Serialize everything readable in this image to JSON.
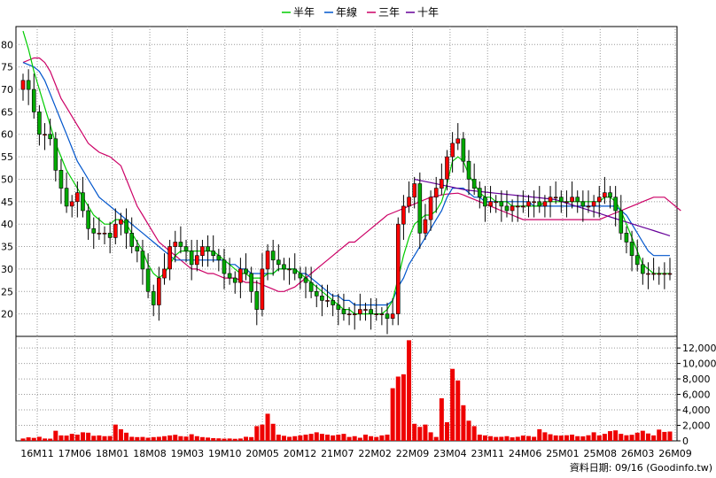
{
  "chart_data": {
    "type": "candlestick-with-volume",
    "legend": [
      {
        "label": "半年",
        "color": "#00cc00"
      },
      {
        "label": "年線",
        "color": "#0055cc"
      },
      {
        "label": "三年",
        "color": "#cc0066"
      },
      {
        "label": "十年",
        "color": "#660099"
      }
    ],
    "price_axis": {
      "ticks": [
        20,
        25,
        30,
        35,
        40,
        45,
        50,
        55,
        60,
        65,
        70,
        75,
        80
      ],
      "ylim": [
        15,
        84
      ]
    },
    "volume_axis": {
      "ticks": [
        "0",
        "2,000",
        "4,000",
        "6,000",
        "8,000",
        "10,000",
        "12,000"
      ],
      "values": [
        0,
        2000,
        4000,
        6000,
        8000,
        10000,
        12000
      ],
      "ylim": [
        0,
        13500
      ]
    },
    "x_ticks": [
      "16M11",
      "17M06",
      "18M01",
      "18M08",
      "19M03",
      "19M10",
      "20M05",
      "20M12",
      "21M07",
      "22M02",
      "22M09",
      "23M04",
      "23M11",
      "24M06",
      "25M01",
      "25M08",
      "26M03",
      "26M09"
    ],
    "ohlc_close": [
      72,
      70,
      65,
      60,
      60,
      59,
      52,
      48,
      44,
      45,
      47,
      43,
      39,
      38,
      38,
      38,
      37,
      40,
      41,
      38,
      35,
      34,
      30,
      25,
      22,
      28,
      30,
      35,
      36,
      35,
      34,
      31,
      33,
      35,
      34,
      33,
      32,
      29,
      28,
      27,
      30,
      29,
      25,
      21,
      30,
      34,
      32,
      31,
      30,
      30,
      29,
      28,
      27,
      25,
      24,
      23,
      23,
      22,
      21,
      20,
      20,
      20,
      21,
      21,
      20,
      20,
      20,
      19,
      20,
      40,
      44,
      46,
      49,
      38,
      41,
      46,
      48,
      50,
      55,
      58,
      59,
      54,
      50,
      48,
      46,
      44,
      45,
      45,
      44,
      43,
      44,
      44,
      44,
      45,
      45,
      44,
      45,
      46,
      46,
      45,
      45,
      46,
      45,
      44,
      44,
      45,
      46,
      47,
      46,
      43,
      38,
      36,
      33,
      31,
      29,
      29,
      29,
      29,
      29,
      29
    ],
    "volume": [
      300,
      450,
      380,
      520,
      300,
      280,
      1300,
      700,
      680,
      900,
      800,
      1100,
      1050,
      650,
      700,
      600,
      620,
      2100,
      1500,
      1050,
      520,
      480,
      500,
      400,
      480,
      520,
      600,
      700,
      780,
      600,
      550,
      850,
      600,
      480,
      420,
      350,
      320,
      280,
      300,
      260,
      300,
      520,
      480,
      1900,
      2100,
      3500,
      2200,
      800,
      650,
      520,
      600,
      700,
      800,
      900,
      1100,
      900,
      800,
      700,
      800,
      900,
      500,
      600,
      400,
      800,
      600,
      500,
      700,
      800,
      6800,
      8300,
      8600,
      13000,
      2200,
      1800,
      2100,
      1100,
      500,
      5500,
      2400,
      9300,
      7800,
      4600,
      2600,
      1900,
      800,
      700,
      600,
      500,
      520,
      600,
      450,
      520,
      680,
      620,
      520,
      1500,
      1100,
      850,
      700,
      680,
      720,
      800,
      600,
      580,
      720,
      1100,
      700,
      900,
      1250,
      1350,
      900,
      720,
      780,
      1050,
      1300,
      950,
      700,
      1450,
      1150,
      1200
    ],
    "ma_half_year": [
      83,
      79,
      74,
      70,
      66,
      62,
      58,
      55,
      52,
      50,
      48,
      46,
      44,
      42,
      41,
      40,
      40,
      41,
      41,
      40,
      38,
      36,
      34,
      31,
      29,
      28,
      29,
      31,
      33,
      34,
      34,
      34,
      34,
      34,
      34,
      34,
      33,
      32,
      31,
      30,
      29,
      29,
      28,
      28,
      28,
      29,
      29,
      30,
      30,
      30,
      30,
      29,
      28,
      27,
      26,
      25,
      24,
      23,
      22,
      21,
      21,
      20,
      20,
      20,
      20,
      20,
      20,
      21,
      23,
      28,
      33,
      37,
      40,
      41,
      42,
      42,
      43,
      45,
      49,
      54,
      55,
      54,
      51,
      49,
      47,
      46,
      46,
      45,
      45,
      45,
      44,
      44,
      44,
      44,
      44,
      44,
      45,
      45,
      45,
      45,
      45,
      45,
      45,
      45,
      45,
      45,
      45,
      46,
      46,
      45,
      43,
      40,
      37,
      34,
      31,
      30,
      29,
      29,
      29,
      29
    ],
    "ma_year": [
      76,
      75.5,
      75,
      74,
      72,
      69,
      66,
      63,
      60,
      57,
      54,
      52,
      50,
      48,
      46,
      45,
      44,
      43,
      42,
      41,
      40,
      39,
      38,
      37,
      36,
      35,
      34,
      33,
      32,
      32,
      32,
      32,
      32,
      32,
      32,
      32,
      32,
      32,
      31,
      31,
      30,
      30,
      29,
      29,
      29,
      29,
      29,
      30,
      30,
      30,
      30,
      29,
      29,
      28,
      27,
      26,
      25,
      24,
      24,
      23,
      23,
      22,
      22,
      22,
      22,
      22,
      22,
      22,
      23,
      26,
      28,
      31,
      33,
      35,
      37,
      39,
      41,
      43,
      46,
      48,
      48,
      48,
      47,
      46,
      46,
      45,
      45,
      45,
      45,
      45,
      45,
      45,
      45,
      45,
      44,
      44,
      44,
      44,
      44,
      44,
      44,
      44,
      44,
      44,
      44,
      44,
      44,
      44,
      44,
      44,
      43,
      42,
      40,
      38,
      36,
      34,
      33,
      33,
      33,
      33
    ],
    "ma_three_year": [
      76,
      76.5,
      77,
      77,
      76,
      74,
      71,
      68,
      66,
      64,
      62,
      60,
      58,
      57,
      56,
      55.5,
      55,
      54,
      53,
      50,
      47,
      44,
      42,
      40,
      38,
      36,
      35,
      34,
      33,
      32,
      31,
      30,
      30,
      29.5,
      29,
      29,
      28.5,
      28,
      28,
      28,
      27.5,
      27,
      27,
      27,
      26.5,
      26,
      25.5,
      25,
      25,
      25.5,
      26,
      27,
      28,
      29,
      30,
      31,
      32,
      33,
      34,
      35,
      36,
      36,
      37,
      38,
      39,
      40,
      41,
      42,
      42.5,
      43,
      43.5,
      44,
      44.5,
      45,
      45.5,
      46,
      46.2,
      46.5,
      46.7,
      46.8,
      46.9,
      46.5,
      46,
      45.5,
      45,
      44.5,
      44,
      43.5,
      43,
      42.5,
      42,
      41.5,
      41,
      41,
      41,
      41,
      41,
      41,
      41,
      41,
      41,
      41,
      41,
      41,
      41,
      41,
      41,
      41.5,
      42,
      42.5,
      43,
      43.5,
      44,
      44.5,
      45,
      45.5,
      46,
      46,
      46,
      45,
      44,
      43
    ],
    "ma_ten_year": [
      null,
      null,
      null,
      null,
      null,
      null,
      null,
      null,
      null,
      null,
      null,
      null,
      null,
      null,
      null,
      null,
      null,
      null,
      null,
      null,
      null,
      null,
      null,
      null,
      null,
      null,
      null,
      null,
      null,
      null,
      null,
      null,
      null,
      null,
      null,
      null,
      null,
      null,
      null,
      null,
      null,
      null,
      null,
      null,
      null,
      null,
      null,
      null,
      null,
      null,
      null,
      null,
      null,
      null,
      null,
      null,
      null,
      null,
      null,
      null,
      null,
      null,
      null,
      null,
      null,
      null,
      null,
      null,
      null,
      null,
      null,
      null,
      null,
      null,
      null,
      null,
      null,
      null,
      null,
      null,
      null,
      null,
      null,
      null,
      null,
      null,
      null,
      null,
      null,
      null,
      null,
      null,
      null,
      null,
      null,
      null,
      null,
      null,
      null,
      null,
      null,
      null,
      null,
      null,
      null,
      null,
      null,
      null,
      null,
      null,
      null,
      null,
      null,
      null,
      null,
      null,
      null,
      null,
      null,
      null
    ]
  },
  "credit": "資料日期: 09/16  (Goodinfo.tw)"
}
